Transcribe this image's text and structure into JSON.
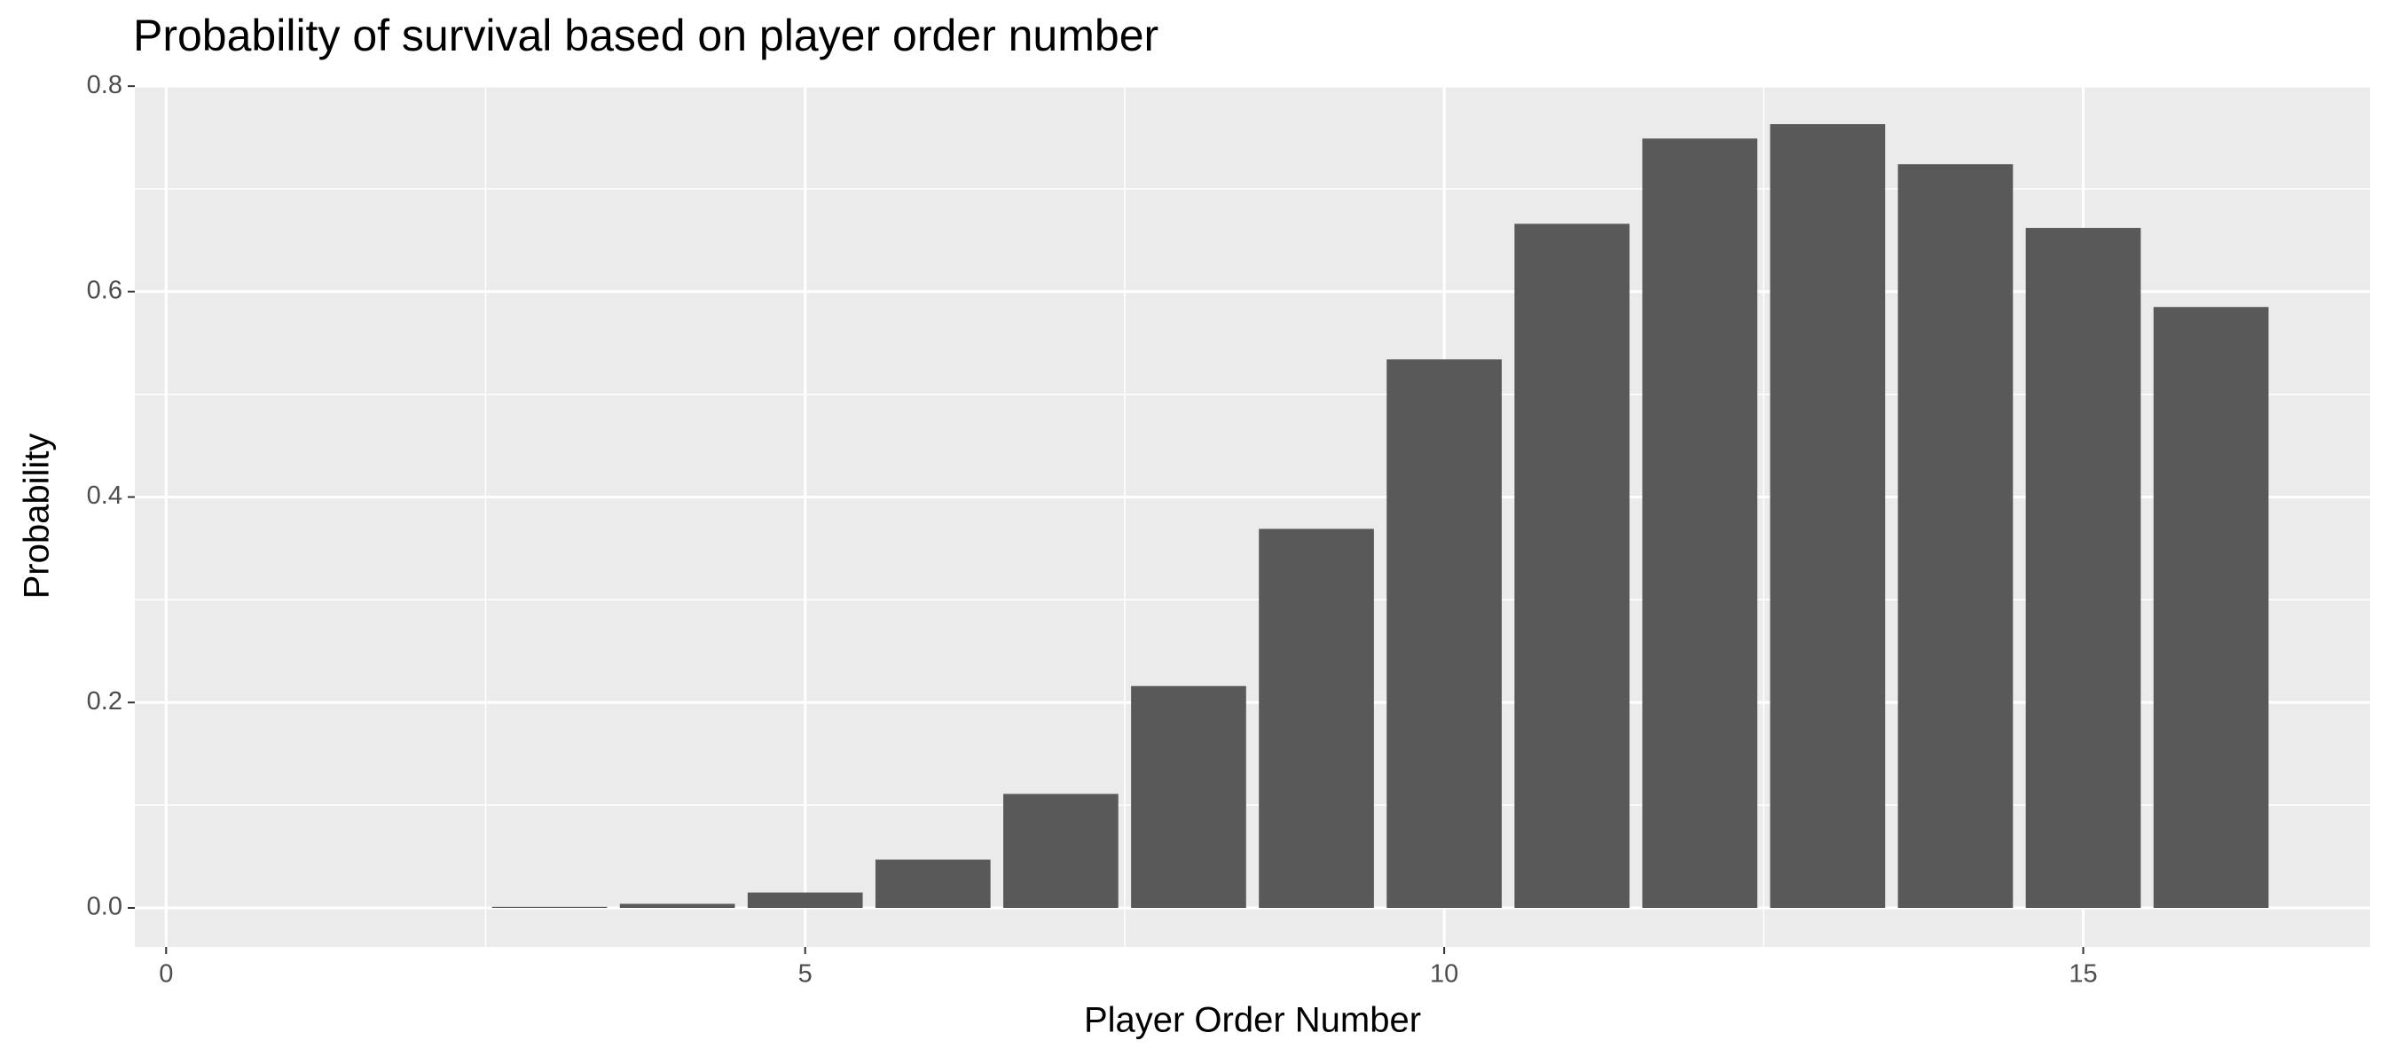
{
  "chart_data": {
    "type": "bar",
    "title": "Probability of survival based on player order number",
    "x_label": "Player Order Number",
    "y_label": "Probability",
    "x": [
      1,
      2,
      3,
      4,
      5,
      6,
      7,
      8,
      9,
      10,
      11,
      12,
      13,
      14,
      15,
      16
    ],
    "values": [
      0,
      0,
      0.001,
      0.004,
      0.015,
      0.047,
      0.111,
      0.216,
      0.369,
      0.534,
      0.666,
      0.749,
      0.763,
      0.724,
      0.662,
      0.585
    ],
    "color": "#595959",
    "bar_width": 0.9,
    "xlim": [
      -0.245,
      17.245
    ],
    "xticks": [
      0,
      5,
      10,
      15
    ],
    "x_minor_grid": [
      2.5,
      7.5,
      12.5
    ],
    "ylim": [
      -0.038,
      0.801
    ],
    "yticks": [
      {
        "value": 0,
        "label": "0.0"
      },
      0.2,
      0.4,
      0.6,
      0.8
    ],
    "y_minor_grid": [
      0.1,
      0.3,
      0.5,
      0.7
    ],
    "grid": true
  }
}
